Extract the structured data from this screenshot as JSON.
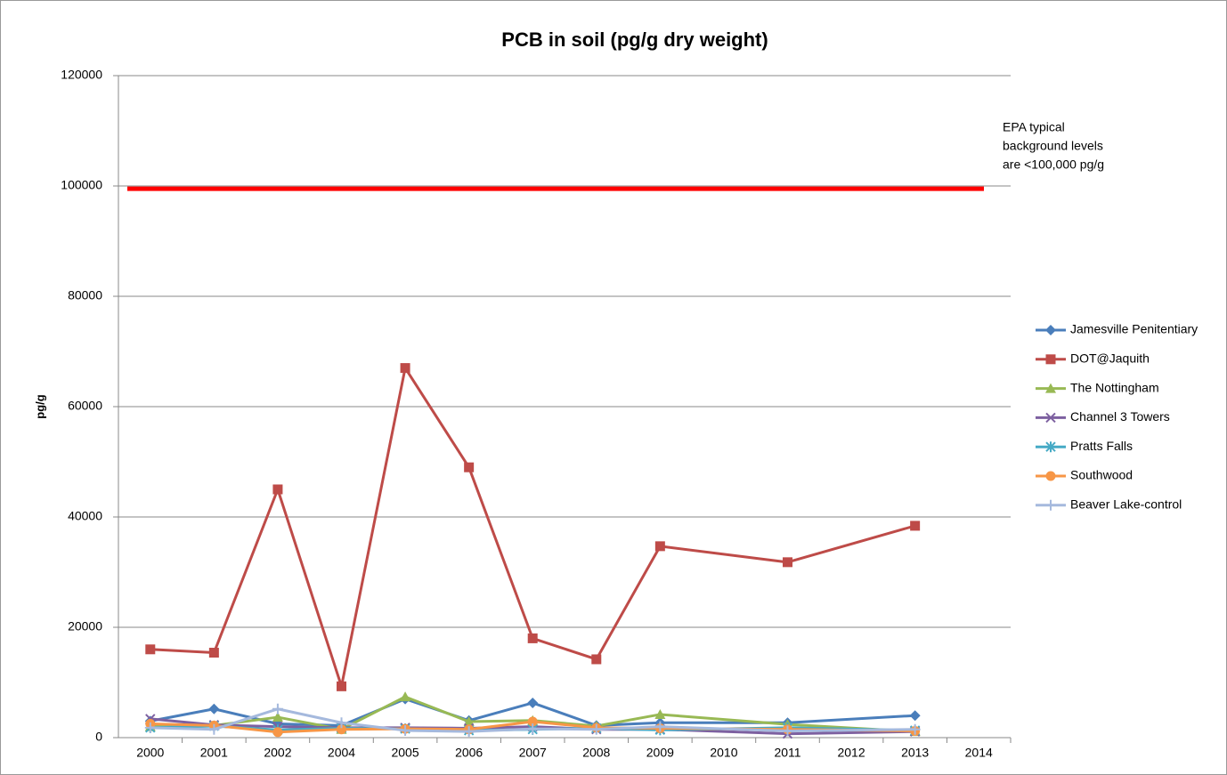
{
  "chart_data": {
    "type": "line",
    "title": "PCB in soil  (pg/g dry weight)",
    "y_label": "pg/g",
    "categories": [
      "2000",
      "2001",
      "2002",
      "2004",
      "2005",
      "2006",
      "2007",
      "2008",
      "2009",
      "2010",
      "2011",
      "2012",
      "2013",
      "2014"
    ],
    "ylim": [
      0,
      120000
    ],
    "yticks": [
      0,
      20000,
      40000,
      60000,
      80000,
      100000,
      120000
    ],
    "grid": true,
    "legend": "right",
    "connect_gaps": true,
    "series": [
      {
        "name": "Jamesville Penitentiary",
        "color": "#4a7ebb",
        "marker": "diamond",
        "values": [
          3000,
          5200,
          2500,
          2200,
          7000,
          3100,
          6300,
          2200,
          2700,
          null,
          2700,
          null,
          4000,
          null
        ]
      },
      {
        "name": "DOT@Jaquith",
        "color": "#be4b48",
        "marker": "square",
        "values": [
          16000,
          15400,
          45000,
          9300,
          67000,
          49000,
          18000,
          14200,
          34700,
          null,
          31800,
          null,
          38400,
          null
        ]
      },
      {
        "name": "The Nottingham",
        "color": "#98b954",
        "marker": "triangle",
        "values": [
          2000,
          2200,
          3700,
          1500,
          7400,
          2900,
          3100,
          2100,
          4200,
          null,
          2400,
          null,
          1100,
          null
        ]
      },
      {
        "name": "Channel 3 Towers",
        "color": "#7d60a0",
        "marker": "x",
        "values": [
          3400,
          2300,
          2000,
          1800,
          1800,
          1700,
          2000,
          1500,
          1500,
          null,
          700,
          null,
          1100,
          null
        ]
      },
      {
        "name": "Pratts Falls",
        "color": "#46aac5",
        "marker": "star",
        "values": [
          1800,
          2100,
          1400,
          1700,
          1600,
          1300,
          1500,
          1700,
          1400,
          null,
          1800,
          null,
          1300,
          null
        ]
      },
      {
        "name": "Southwood",
        "color": "#f79646",
        "marker": "circle",
        "values": [
          2500,
          2200,
          1000,
          1500,
          1600,
          1500,
          2900,
          1800,
          1700,
          null,
          1500,
          null,
          1200,
          null
        ]
      },
      {
        "name": "Beaver Lake-control",
        "color": "#a5b9dd",
        "marker": "plus",
        "values": [
          1800,
          1500,
          5200,
          2700,
          1300,
          1100,
          1600,
          1500,
          2000,
          null,
          1200,
          null,
          1500,
          null
        ]
      }
    ],
    "reference_line": {
      "value": 99500,
      "color": "#ff0000"
    },
    "annotation": [
      "EPA typical",
      "background levels",
      "are <100,000 pg/g"
    ]
  }
}
